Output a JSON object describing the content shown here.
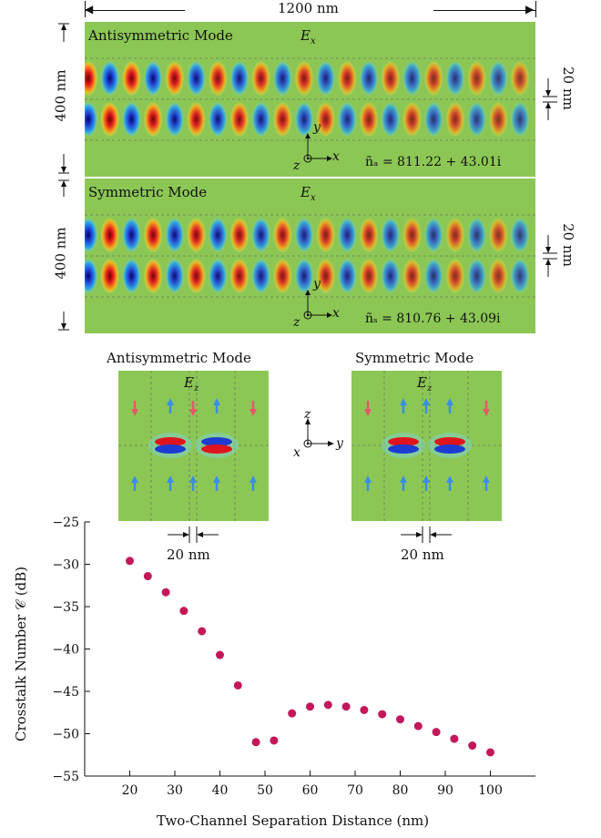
{
  "top": {
    "width_label": "1200 nm",
    "antisymmetric": {
      "title": "Antisymmetric Mode",
      "field": "E",
      "field_sub": "x",
      "height_label": "400 nm",
      "gap_label": "20 nm",
      "index_label": "ñₐ = 811.22 + 43.01i",
      "axes": {
        "y": "y",
        "z": "z",
        "x": "x"
      }
    },
    "symmetric": {
      "title": "Symmetric Mode",
      "field": "E",
      "field_sub": "x",
      "height_label": "400 nm",
      "gap_label": "20 nm",
      "index_label": "ñₛ = 810.76 + 43.09i",
      "axes": {
        "y": "y",
        "z": "z",
        "x": "x"
      }
    }
  },
  "middle": {
    "antisymmetric": {
      "title": "Antisymmetric Mode",
      "field": "E",
      "field_sub": "z",
      "gap_label": "20 nm"
    },
    "symmetric": {
      "title": "Symmetric Mode",
      "field": "E",
      "field_sub": "z",
      "gap_label": "20 nm"
    },
    "axes": {
      "z": "z",
      "x": "x",
      "y": "y"
    }
  },
  "colors": {
    "background": "#8cc756",
    "red": "#e0141e",
    "blue": "#1e3cd2",
    "marker": "#c2185b",
    "arrow_red": "#e8566a",
    "arrow_blue": "#3a8ee8"
  },
  "chart_data": {
    "type": "scatter",
    "xlabel": "Two-Channel Separation Distance (nm)",
    "ylabel": "Crosstalk Number 𝒞 (dB)",
    "xlim": [
      10,
      110
    ],
    "ylim": [
      -55,
      -25
    ],
    "xticks": [
      20,
      30,
      40,
      50,
      60,
      70,
      80,
      90,
      100
    ],
    "yticks": [
      -25,
      -30,
      -35,
      -40,
      -45,
      -50,
      -55
    ],
    "x": [
      20,
      24,
      28,
      32,
      36,
      40,
      44,
      48,
      52,
      56,
      60,
      64,
      68,
      72,
      76,
      80,
      84,
      88,
      92,
      96,
      100
    ],
    "y": [
      -29.6,
      -31.4,
      -33.3,
      -35.5,
      -37.9,
      -40.7,
      -44.3,
      -51.0,
      -50.8,
      -47.6,
      -46.8,
      -46.6,
      -46.8,
      -47.2,
      -47.7,
      -48.3,
      -49.1,
      -49.8,
      -50.6,
      -51.4,
      -52.2
    ]
  }
}
